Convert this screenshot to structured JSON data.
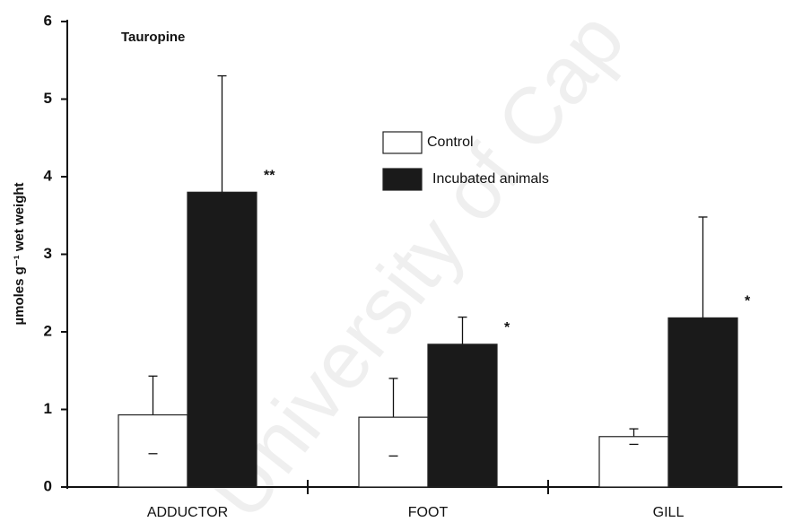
{
  "chart_data": {
    "type": "bar",
    "title": "Tauropine",
    "y_label": "µmoles g⁻¹ wet weight",
    "watermark": "University of Cap",
    "categories": [
      "ADDUCTOR",
      "FOOT",
      "GILL"
    ],
    "series": [
      {
        "name": "Control",
        "color": "#ffffff",
        "values": [
          0.93,
          0.9,
          0.65
        ],
        "error": [
          0.5,
          0.5,
          0.1
        ]
      },
      {
        "name": "Incubated animals",
        "color": "#1a1a1a",
        "values": [
          3.8,
          1.84,
          2.18
        ],
        "error": [
          1.5,
          0.35,
          1.3
        ],
        "significance": [
          "**",
          "*",
          "*"
        ]
      }
    ],
    "ylim": [
      0,
      6
    ],
    "yticks": [
      0,
      1,
      2,
      3,
      4,
      5,
      6
    ],
    "grid": false
  }
}
